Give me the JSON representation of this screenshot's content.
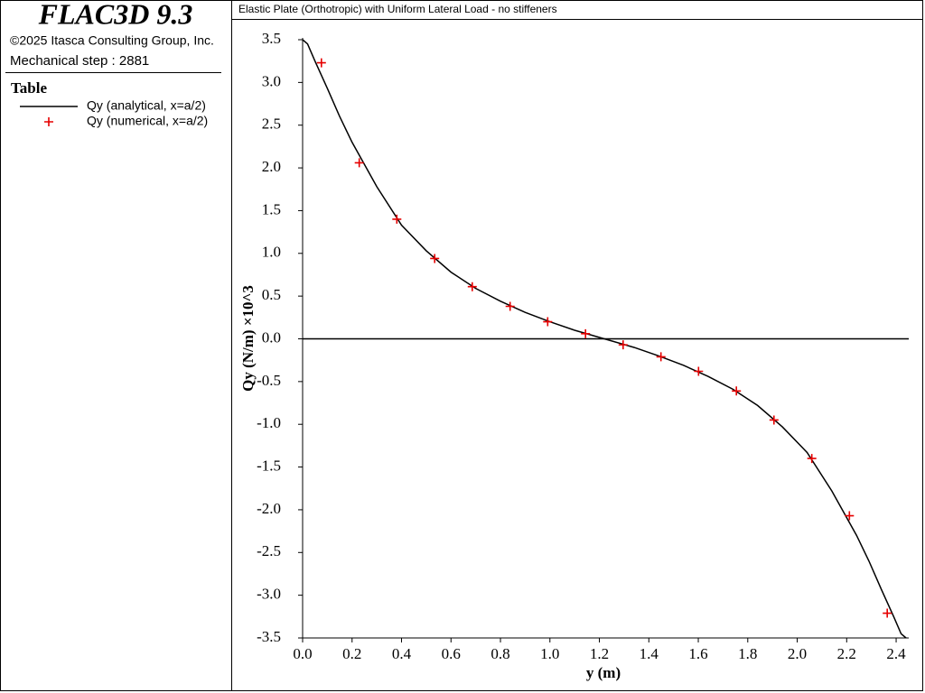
{
  "panel": {
    "product": "FLAC3D 9.3",
    "copyright": "©2025 Itasca Consulting Group, Inc.",
    "step": "Mechanical step : 2881",
    "legend_title": "Table"
  },
  "chart_data": {
    "type": "line",
    "title": "Elastic Plate (Orthotropic) with Uniform Lateral Load - no stiffeners",
    "x_label": "y (m)",
    "y_label": "Qy (N/m) ×10^3",
    "xlim": [
      0,
      2.44
    ],
    "ylim": [
      -3.5,
      3.5
    ],
    "xticks": [
      {
        "value": 0,
        "label": "0.0"
      },
      0.2,
      0.4,
      0.6,
      0.8,
      {
        "value": 1,
        "label": "1.0"
      },
      1.2,
      1.4,
      1.6,
      1.8,
      {
        "value": 2,
        "label": "2.0"
      },
      2.2,
      2.4
    ],
    "yticks": [
      3.5,
      {
        "value": 3,
        "label": "3.0"
      },
      2.5,
      {
        "value": 2,
        "label": "2.0"
      },
      1.5,
      {
        "value": 1,
        "label": "1.0"
      },
      0.5,
      {
        "value": 0,
        "label": "0.0"
      },
      -0.5,
      {
        "value": -1,
        "label": "-1.0"
      },
      -1.5,
      {
        "value": -2,
        "label": "-2.0"
      },
      -2.5,
      {
        "value": -3,
        "label": "-3.0"
      },
      -3.5
    ],
    "series": [
      {
        "name": "Qy (analytical, x=a/2)",
        "color": "#000000",
        "style": "line",
        "x": [
          0,
          0.02,
          0.05,
          0.1,
          0.15,
          0.2,
          0.3,
          0.4,
          0.5,
          0.6,
          0.7,
          0.8,
          0.9,
          1.0,
          1.1,
          1.22,
          1.34,
          1.44,
          1.54,
          1.64,
          1.74,
          1.84,
          1.94,
          2.04,
          2.14,
          2.24,
          2.29,
          2.34,
          2.39,
          2.42,
          2.44
        ],
        "values": [
          3.5,
          3.45,
          3.25,
          2.93,
          2.6,
          2.3,
          1.78,
          1.33,
          1.03,
          0.78,
          0.59,
          0.44,
          0.31,
          0.2,
          0.1,
          0,
          -0.1,
          -0.2,
          -0.31,
          -0.44,
          -0.59,
          -0.78,
          -1.03,
          -1.33,
          -1.78,
          -2.3,
          -2.6,
          -2.93,
          -3.25,
          -3.45,
          -3.5
        ]
      },
      {
        "name": "Qy (numerical, x=a/2)",
        "color": "#e60000",
        "style": "marker",
        "x": [
          0.076,
          0.229,
          0.381,
          0.534,
          0.686,
          0.839,
          0.991,
          1.144,
          1.296,
          1.449,
          1.601,
          1.754,
          1.906,
          2.059,
          2.211,
          2.364
        ],
        "values": [
          3.23,
          2.06,
          1.4,
          0.94,
          0.61,
          0.38,
          0.2,
          0.06,
          -0.07,
          -0.21,
          -0.38,
          -0.61,
          -0.95,
          -1.4,
          -2.07,
          -3.21
        ]
      }
    ]
  }
}
